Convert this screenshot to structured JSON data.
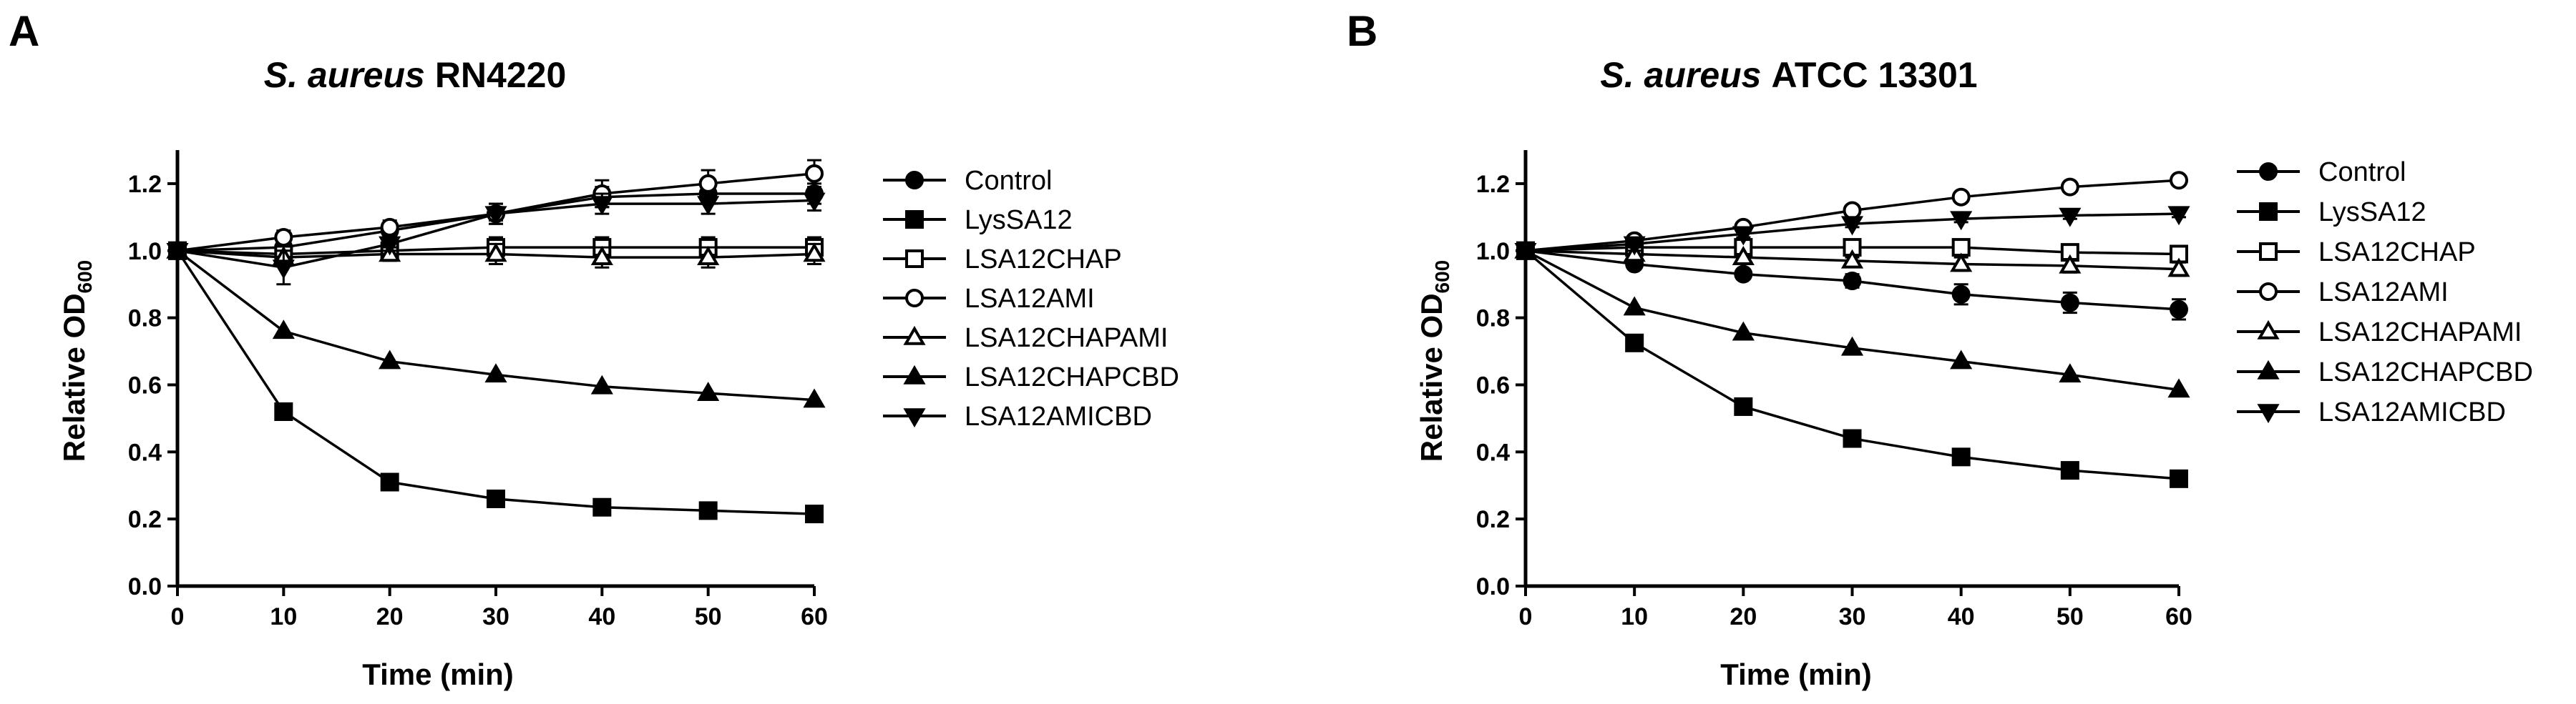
{
  "figure": {
    "panels": [
      "A",
      "B"
    ]
  },
  "chart_data": [
    {
      "panel": "A",
      "type": "line",
      "title_italic": "S. aureus",
      "title_rest": "RN4220",
      "xlabel": "Time (min)",
      "ylabel_main": "Relative OD",
      "ylabel_sub": "600",
      "xlim": [
        0,
        60
      ],
      "ylim": [
        0,
        1.3
      ],
      "x_ticks": [
        "0",
        "10",
        "20",
        "30",
        "40",
        "50",
        "60"
      ],
      "y_ticks": [
        "0.0",
        "0.2",
        "0.4",
        "0.6",
        "0.8",
        "1.0",
        "1.2"
      ],
      "x": [
        0,
        10,
        20,
        30,
        40,
        50,
        60
      ],
      "series": [
        {
          "name": "Control",
          "marker": "circle-filled",
          "values": [
            1.0,
            1.01,
            1.06,
            1.11,
            1.16,
            1.17,
            1.17
          ],
          "err": [
            0,
            0.02,
            0.02,
            0.02,
            0.03,
            0.03,
            0.03
          ]
        },
        {
          "name": "LysSA12",
          "marker": "square-filled",
          "values": [
            1.0,
            0.52,
            0.31,
            0.26,
            0.235,
            0.225,
            0.215
          ],
          "err": [
            0,
            0,
            0,
            0,
            0,
            0,
            0
          ]
        },
        {
          "name": "LSA12CHAP",
          "marker": "square-open",
          "values": [
            1.0,
            0.99,
            1.0,
            1.01,
            1.01,
            1.01,
            1.01
          ],
          "err": [
            0,
            0.03,
            0.02,
            0.03,
            0.03,
            0.03,
            0.03
          ]
        },
        {
          "name": "LSA12AMI",
          "marker": "circle-open",
          "values": [
            1.0,
            1.04,
            1.07,
            1.11,
            1.17,
            1.2,
            1.23
          ],
          "err": [
            0,
            0.02,
            0.02,
            0.03,
            0.04,
            0.04,
            0.04
          ]
        },
        {
          "name": "LSA12CHAPAMI",
          "marker": "triangle-open",
          "values": [
            1.0,
            0.98,
            0.99,
            0.99,
            0.98,
            0.98,
            0.99
          ],
          "err": [
            0,
            0.02,
            0.02,
            0.03,
            0.03,
            0.03,
            0.03
          ]
        },
        {
          "name": "LSA12CHAPCBD",
          "marker": "triangle-filled",
          "values": [
            1.0,
            0.76,
            0.67,
            0.63,
            0.595,
            0.575,
            0.555
          ],
          "err": [
            0,
            0,
            0,
            0,
            0,
            0,
            0
          ]
        },
        {
          "name": "LSA12AMICBD",
          "marker": "triangle-down-filled",
          "values": [
            1.0,
            0.95,
            1.02,
            1.11,
            1.14,
            1.14,
            1.15
          ],
          "err": [
            0,
            0.05,
            0.02,
            0.03,
            0.03,
            0.03,
            0.03
          ]
        }
      ]
    },
    {
      "panel": "B",
      "type": "line",
      "title_italic": "S. aureus",
      "title_rest": "ATCC 13301",
      "xlabel": "Time (min)",
      "ylabel_main": "Relative OD",
      "ylabel_sub": "600",
      "xlim": [
        0,
        60
      ],
      "ylim": [
        0,
        1.3
      ],
      "x_ticks": [
        "0",
        "10",
        "20",
        "30",
        "40",
        "50",
        "60"
      ],
      "y_ticks": [
        "0.0",
        "0.2",
        "0.4",
        "0.6",
        "0.8",
        "1.0",
        "1.2"
      ],
      "x": [
        0,
        10,
        20,
        30,
        40,
        50,
        60
      ],
      "series": [
        {
          "name": "Control",
          "marker": "circle-filled",
          "values": [
            1.0,
            0.96,
            0.93,
            0.91,
            0.87,
            0.845,
            0.825
          ],
          "err": [
            0,
            0.01,
            0.01,
            0.02,
            0.03,
            0.03,
            0.03
          ]
        },
        {
          "name": "LysSA12",
          "marker": "square-filled",
          "values": [
            1.0,
            0.725,
            0.535,
            0.44,
            0.385,
            0.345,
            0.32
          ],
          "err": [
            0,
            0,
            0,
            0,
            0,
            0,
            0
          ]
        },
        {
          "name": "LSA12CHAP",
          "marker": "square-open",
          "values": [
            1.0,
            1.01,
            1.01,
            1.01,
            1.01,
            0.995,
            0.99
          ],
          "err": [
            0,
            0.01,
            0.01,
            0.01,
            0.01,
            0.01,
            0.01
          ]
        },
        {
          "name": "LSA12AMI",
          "marker": "circle-open",
          "values": [
            1.0,
            1.03,
            1.07,
            1.12,
            1.16,
            1.19,
            1.21
          ],
          "err": [
            0,
            0.01,
            0.01,
            0.01,
            0.01,
            0.01,
            0.01
          ]
        },
        {
          "name": "LSA12CHAPAMI",
          "marker": "triangle-open",
          "values": [
            1.0,
            0.99,
            0.98,
            0.97,
            0.96,
            0.955,
            0.945
          ],
          "err": [
            0,
            0.01,
            0.01,
            0.01,
            0.02,
            0.02,
            0.02
          ]
        },
        {
          "name": "LSA12CHAPCBD",
          "marker": "triangle-filled",
          "values": [
            1.0,
            0.83,
            0.755,
            0.71,
            0.67,
            0.63,
            0.585
          ],
          "err": [
            0,
            0,
            0,
            0,
            0,
            0,
            0
          ]
        },
        {
          "name": "LSA12AMICBD",
          "marker": "triangle-down-filled",
          "values": [
            1.0,
            1.02,
            1.05,
            1.08,
            1.095,
            1.105,
            1.11
          ],
          "err": [
            0,
            0.01,
            0.01,
            0.01,
            0.01,
            0.01,
            0.01
          ]
        }
      ]
    }
  ]
}
